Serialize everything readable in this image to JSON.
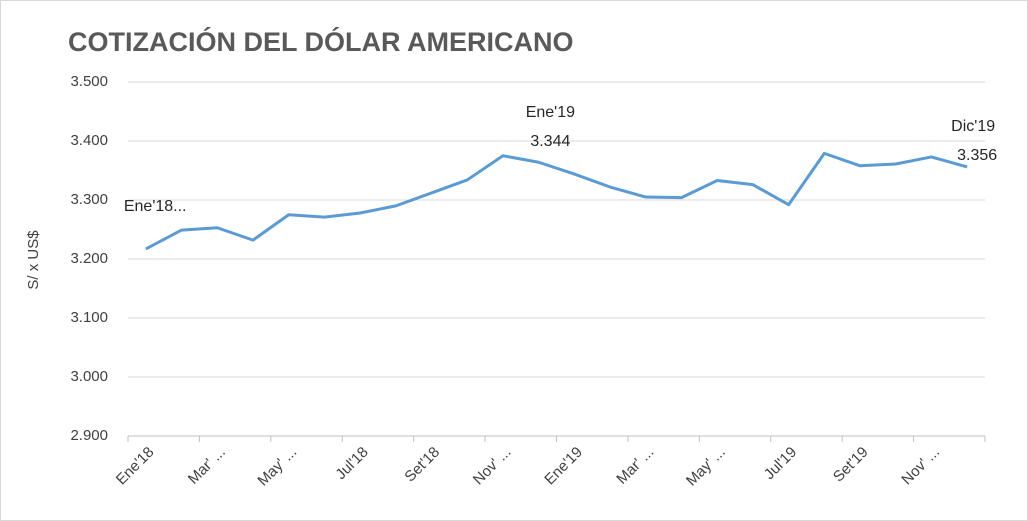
{
  "chart_data": {
    "type": "line",
    "title": "COTIZACIÓN DEL DÓLAR AMERICANO",
    "y_label": "S/ x US$",
    "categories": [
      "Ene'18",
      null,
      "Mar' ...",
      null,
      "May' ...",
      null,
      "Jul'18",
      null,
      "Set'18",
      null,
      "Nov' ...",
      null,
      "Ene'19",
      null,
      "Mar' ...",
      null,
      "May' ...",
      null,
      "Jul'19",
      null,
      "Set'19",
      null,
      "Nov' ...",
      null
    ],
    "series": [
      {
        "name": "Cotización",
        "color": "#5b9bd5",
        "values": [
          3.217,
          3.249,
          3.253,
          3.232,
          3.275,
          3.271,
          3.278,
          3.29,
          3.312,
          3.334,
          3.375,
          3.364,
          3.344,
          3.322,
          3.305,
          3.304,
          3.333,
          3.326,
          3.292,
          3.379,
          3.358,
          3.361,
          3.373,
          3.356
        ],
        "point_labels": [
          "Ene'18...",
          null,
          null,
          null,
          null,
          null,
          null,
          null,
          null,
          null,
          null,
          null,
          "Ene'19",
          null,
          null,
          null,
          null,
          null,
          null,
          null,
          null,
          null,
          null,
          "Dic'19"
        ]
      }
    ],
    "ylim": [
      2.9,
      3.5
    ],
    "yticks": [
      {
        "value": 2.9,
        "label": "2.900"
      },
      {
        "value": 3.0,
        "label": "3.000"
      },
      {
        "value": 3.1,
        "label": "3.100"
      },
      {
        "value": 3.2,
        "label": "3.200"
      },
      {
        "value": 3.3,
        "label": "3.300"
      },
      {
        "value": 3.4,
        "label": "3.400"
      },
      {
        "value": 3.5,
        "label": "3.500"
      }
    ],
    "grid": true
  }
}
